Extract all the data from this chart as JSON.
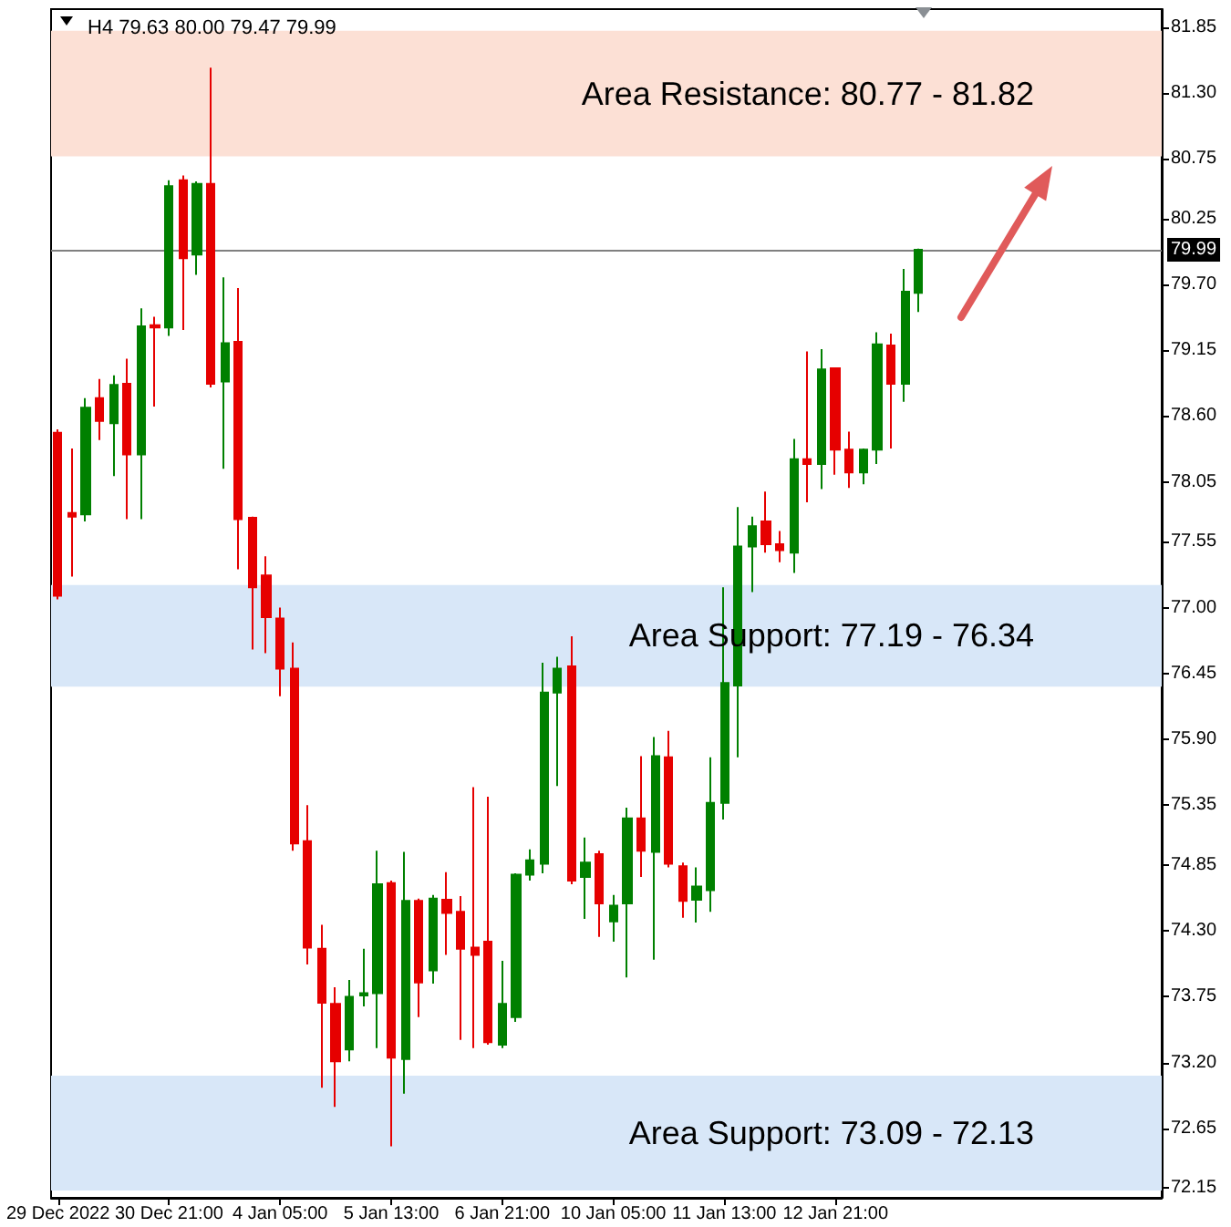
{
  "chart_data": {
    "type": "candlestick",
    "title": "H4 79.63 80.00 79.47 79.99",
    "categories": [
      "29 Dec 2022",
      null,
      null,
      null,
      null,
      null,
      null,
      null,
      "30 Dec 21:00",
      null,
      null,
      null,
      null,
      null,
      null,
      null,
      "4 Jan 05:00",
      null,
      null,
      null,
      null,
      null,
      null,
      null,
      "5 Jan 13:00",
      null,
      null,
      null,
      null,
      null,
      null,
      null,
      "6 Jan 21:00",
      null,
      null,
      null,
      null,
      null,
      null,
      null,
      "10 Jan 05:00",
      null,
      null,
      null,
      null,
      null,
      null,
      null,
      "11 Jan 13:00",
      null,
      null,
      null,
      null,
      null,
      null,
      null,
      "12 Jan 21:00",
      null,
      null,
      null,
      null,
      null,
      null,
      null,
      null,
      null,
      null,
      null,
      null,
      null,
      null,
      null,
      null,
      null,
      null,
      null,
      null,
      null,
      null,
      null
    ],
    "ohlc": [
      [
        78.46,
        78.49,
        77.07,
        77.1
      ],
      [
        77.79,
        78.33,
        77.26,
        77.76
      ],
      [
        77.78,
        78.75,
        77.72,
        78.67
      ],
      [
        78.75,
        78.91,
        78.4,
        78.56
      ],
      [
        78.54,
        78.94,
        78.1,
        78.86
      ],
      [
        78.87,
        79.08,
        77.74,
        78.28
      ],
      [
        78.28,
        79.5,
        77.74,
        79.35
      ],
      [
        79.36,
        79.43,
        78.68,
        79.34
      ],
      [
        79.34,
        80.57,
        79.27,
        80.52
      ],
      [
        80.57,
        80.61,
        79.32,
        79.92
      ],
      [
        79.95,
        80.56,
        79.78,
        80.54
      ],
      [
        80.54,
        81.51,
        78.84,
        78.87
      ],
      [
        78.89,
        79.76,
        78.16,
        79.21
      ],
      [
        79.22,
        79.67,
        77.32,
        77.74
      ],
      [
        77.75,
        77.76,
        76.65,
        77.17
      ],
      [
        77.27,
        77.43,
        76.62,
        76.92
      ],
      [
        76.91,
        77.0,
        76.26,
        76.49
      ],
      [
        76.49,
        76.71,
        74.97,
        75.03
      ],
      [
        75.05,
        75.35,
        74.02,
        74.16
      ],
      [
        74.15,
        74.35,
        72.99,
        73.7
      ],
      [
        73.69,
        73.83,
        72.83,
        73.21
      ],
      [
        73.31,
        73.89,
        73.21,
        73.75
      ],
      [
        73.76,
        74.15,
        73.67,
        73.78
      ],
      [
        73.78,
        74.97,
        73.32,
        74.69
      ],
      [
        74.7,
        74.72,
        72.5,
        73.24
      ],
      [
        73.23,
        74.96,
        72.94,
        74.55
      ],
      [
        74.55,
        74.57,
        73.58,
        73.87
      ],
      [
        73.97,
        74.6,
        73.86,
        74.57
      ],
      [
        74.56,
        74.79,
        74.1,
        74.45
      ],
      [
        74.46,
        74.59,
        73.39,
        74.15
      ],
      [
        74.16,
        75.5,
        73.32,
        74.1
      ],
      [
        74.21,
        75.42,
        73.35,
        73.37
      ],
      [
        73.35,
        74.05,
        73.32,
        73.69
      ],
      [
        73.58,
        74.78,
        73.54,
        74.77
      ],
      [
        74.77,
        74.98,
        74.72,
        74.89
      ],
      [
        74.86,
        76.54,
        74.78,
        76.29
      ],
      [
        76.29,
        76.59,
        75.51,
        76.49
      ],
      [
        76.51,
        76.76,
        74.69,
        74.72
      ],
      [
        74.75,
        75.08,
        74.4,
        74.87
      ],
      [
        74.94,
        74.97,
        74.25,
        74.53
      ],
      [
        74.38,
        74.6,
        74.21,
        74.51
      ],
      [
        74.53,
        75.33,
        73.91,
        75.24
      ],
      [
        75.24,
        75.76,
        74.75,
        74.97
      ],
      [
        74.96,
        75.92,
        74.06,
        75.76
      ],
      [
        75.75,
        75.97,
        74.83,
        74.86
      ],
      [
        74.84,
        74.87,
        74.41,
        74.55
      ],
      [
        74.56,
        74.83,
        74.37,
        74.67
      ],
      [
        74.64,
        75.75,
        74.46,
        75.37
      ],
      [
        75.37,
        77.17,
        75.23,
        76.37
      ],
      [
        76.35,
        77.84,
        75.75,
        77.51
      ],
      [
        77.51,
        77.76,
        77.13,
        77.68
      ],
      [
        77.72,
        77.97,
        77.46,
        77.53
      ],
      [
        77.53,
        77.64,
        77.38,
        77.48
      ],
      [
        77.46,
        78.41,
        77.29,
        78.24
      ],
      [
        78.24,
        79.14,
        77.88,
        78.2
      ],
      [
        78.2,
        79.16,
        77.99,
        78.99
      ],
      [
        79.0,
        79.0,
        78.11,
        78.32
      ],
      [
        78.32,
        78.47,
        78.0,
        78.13
      ],
      [
        78.13,
        78.33,
        78.03,
        78.32
      ],
      [
        78.32,
        79.3,
        78.2,
        79.2
      ],
      [
        79.19,
        79.29,
        78.33,
        78.87
      ],
      [
        78.87,
        79.83,
        78.72,
        79.64
      ],
      [
        79.63,
        80.0,
        79.47,
        79.99
      ],
      null,
      null,
      null,
      null,
      null,
      null,
      null,
      null,
      null,
      null,
      null,
      null,
      null,
      null,
      null,
      null,
      null
    ],
    "colors": [
      "#e60000",
      "#e60000",
      "#008000",
      "#e60000",
      "#008000",
      "#e60000",
      "#008000",
      "#e60000",
      "#008000",
      "#e60000",
      "#008000",
      "#e60000",
      "#008000",
      "#e60000",
      "#e60000",
      "#e60000",
      "#e60000",
      "#e60000",
      "#e60000",
      "#e60000",
      "#e60000",
      "#008000",
      "#008000",
      "#008000",
      "#e60000",
      "#008000",
      "#e60000",
      "#008000",
      "#e60000",
      "#e60000",
      "#e60000",
      "#e60000",
      "#008000",
      "#008000",
      "#008000",
      "#008000",
      "#008000",
      "#e60000",
      "#008000",
      "#e60000",
      "#008000",
      "#008000",
      "#e60000",
      "#008000",
      "#e60000",
      "#e60000",
      "#008000",
      "#008000",
      "#008000",
      "#008000",
      "#008000",
      "#e60000",
      "#e60000",
      "#008000",
      "#e60000",
      "#008000",
      "#e60000",
      "#e60000",
      "#008000",
      "#008000",
      "#e60000",
      "#008000",
      "#008000",
      null,
      null,
      null,
      null,
      null,
      null,
      null,
      null,
      null,
      null,
      null,
      null,
      null,
      null,
      null,
      null,
      null
    ],
    "ylim": [
      72.07,
      82.0
    ],
    "yticks": [
      81.85,
      {
        "value": 81.3,
        "label": "81.30"
      },
      80.75,
      80.25,
      {
        "value": 79.7,
        "label": "79.70"
      },
      79.15,
      {
        "value": 78.6,
        "label": "78.60"
      },
      78.05,
      77.55,
      {
        "value": 77,
        "label": "77.00"
      },
      76.45,
      {
        "value": 75.9,
        "label": "75.90"
      },
      75.35,
      74.85,
      {
        "value": 74.3,
        "label": "74.30"
      },
      73.75,
      {
        "value": 73.2,
        "label": "73.20"
      },
      72.65,
      72.15
    ],
    "ref_lines": [
      {
        "axis": "y",
        "value": 79.99,
        "label": "79.99",
        "color": "#808080"
      }
    ],
    "bands": [
      {
        "axis": "y",
        "from": 80.77,
        "to": 81.82,
        "label": "Area Resistance: 80.77 - 81.82",
        "color": "#fce0d5"
      },
      {
        "axis": "y",
        "from": 77.19,
        "to": 76.34,
        "label": "Area Support: 77.19 - 76.34",
        "color": "#d8e7f8"
      },
      {
        "axis": "y",
        "from": 73.09,
        "to": 72.13,
        "label": "Area Support: 73.09 - 72.13",
        "color": "#d8e7f8"
      }
    ]
  }
}
